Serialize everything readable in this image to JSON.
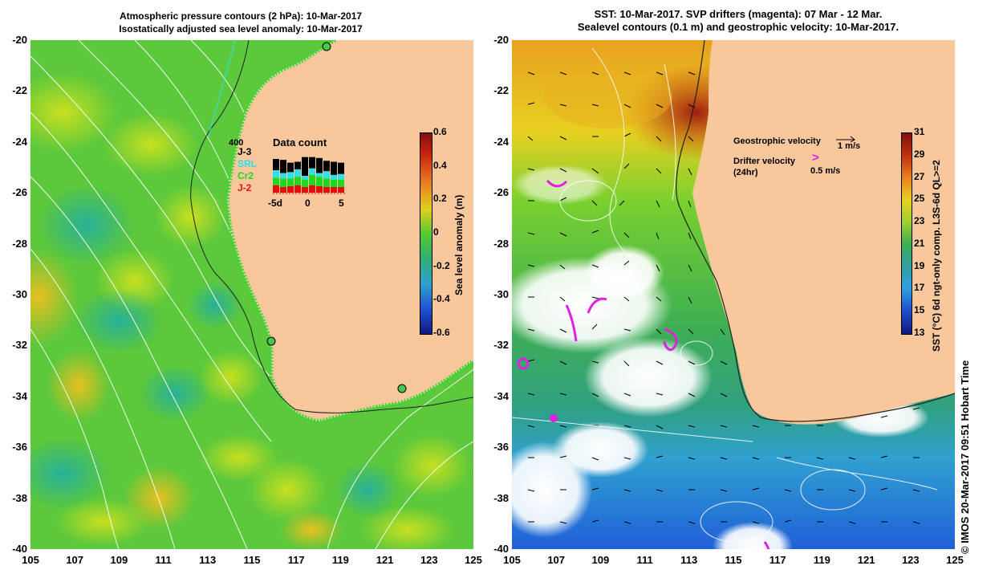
{
  "left_panel": {
    "title_line1": "Atmospheric pressure contours (2 hPa): 10-Mar-2017",
    "title_line2": "Isostatically adjusted sea level anomaly: 10-Mar-2017",
    "colorbar": {
      "label": "Sea level anomaly (m)",
      "ticks": [
        "0.6",
        "0.4",
        "0.2",
        "0",
        "-0.2",
        "-0.4",
        "-0.6"
      ]
    },
    "data_count": {
      "title": "Data count",
      "max_label": "400",
      "x_ticks": [
        "-5d",
        "0",
        "5"
      ],
      "series": [
        {
          "name": "J-3",
          "color": "#000000"
        },
        {
          "name": "SRL",
          "color": "#30e0e8"
        },
        {
          "name": "Cr2",
          "color": "#20d820"
        },
        {
          "name": "J-2",
          "color": "#e01010"
        }
      ],
      "bars": [
        [
          60,
          40,
          40,
          40
        ],
        [
          70,
          30,
          45,
          30
        ],
        [
          50,
          35,
          40,
          35
        ],
        [
          40,
          40,
          45,
          40
        ],
        [
          100,
          20,
          40,
          30
        ],
        [
          60,
          35,
          55,
          40
        ],
        [
          80,
          20,
          50,
          35
        ],
        [
          55,
          40,
          45,
          30
        ],
        [
          70,
          25,
          40,
          30
        ],
        [
          60,
          30,
          40,
          30
        ]
      ]
    }
  },
  "right_panel": {
    "title_line1": "SST: 10-Mar-2017. SVP drifters (magenta): 07 Mar - 12 Mar.",
    "title_line2": "Sealevel contours (0.1 m) and geostrophic velocity: 10-Mar-2017.",
    "colorbar": {
      "label": "SST (°C) 6d ngt-only comp. L3S-6d QL>=2",
      "ticks": [
        "31",
        "29",
        "27",
        "25",
        "23",
        "21",
        "19",
        "17",
        "15",
        "13"
      ]
    },
    "legend": {
      "geostrophic_label": "Geostrophic velocity",
      "geostrophic_scale": "1 m/s",
      "drifter_label_line1": "Drifter velocity",
      "drifter_label_line2": "(24hr)",
      "drifter_symbol": ">",
      "drifter_scale": "0.5 m/s"
    }
  },
  "axes": {
    "y_ticks": [
      "-20",
      "-22",
      "-24",
      "-26",
      "-28",
      "-30",
      "-32",
      "-34",
      "-36",
      "-38",
      "-40"
    ],
    "x_ticks": [
      "105",
      "107",
      "109",
      "111",
      "113",
      "115",
      "117",
      "119",
      "121",
      "123",
      "125"
    ]
  },
  "credit": "© IMOS 20-Mar-2017 09:51 Hobart Time",
  "colors": {
    "land": "#f8c89c",
    "land_dark": "#e8a070",
    "magenta": "#e020e0"
  }
}
